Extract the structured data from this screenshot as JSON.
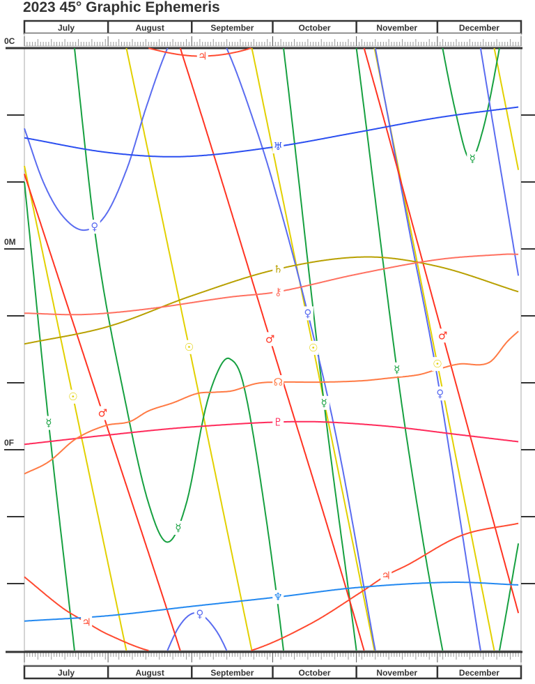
{
  "chart_data": {
    "type": "line",
    "title": "2023 45° Graphic Ephemeris",
    "x_tick_labels": [
      "July",
      "August",
      "September",
      "October",
      "November",
      "December"
    ],
    "x_range": [
      "07-01",
      "12-31"
    ],
    "y_tick_labels": [
      {
        "label": "0C",
        "deg": 0
      },
      {
        "label": "0M",
        "deg": 15
      },
      {
        "label": "0F",
        "deg": 30
      }
    ],
    "y_range_deg": [
      0,
      45
    ],
    "y_modulus": 45,
    "grid": false,
    "series": [
      {
        "icon": "sun",
        "glyph": "☉",
        "color": "#e2d000",
        "points": [
          [
            "07-01",
            98.8
          ],
          [
            "08-01",
            128.5
          ],
          [
            "09-01",
            158.3
          ],
          [
            "10-01",
            187.6
          ],
          [
            "11-01",
            218.3
          ],
          [
            "12-01",
            248.6
          ],
          [
            "12-31",
            279.1
          ]
        ],
        "labels": [
          "07-19",
          "08-31",
          "10-16",
          "12-01"
        ]
      },
      {
        "icon": "mercury",
        "glyph": "☿",
        "color": "#16a040",
        "points": [
          [
            "07-01",
            100
          ],
          [
            "07-10",
            118
          ],
          [
            "07-19",
            134
          ],
          [
            "07-28",
            150
          ],
          [
            "08-08",
            162
          ],
          [
            "08-16",
            169
          ],
          [
            "08-23",
            171.9
          ],
          [
            "08-30",
            169
          ],
          [
            "09-06",
            162
          ],
          [
            "09-11",
            159
          ],
          [
            "09-15",
            158.2
          ],
          [
            "09-20",
            160
          ],
          [
            "09-27",
            168
          ],
          [
            "10-05",
            180
          ],
          [
            "10-20",
            206.5
          ],
          [
            "11-01",
            225
          ],
          [
            "11-16",
            249
          ],
          [
            "11-25",
            261
          ],
          [
            "12-02",
            269
          ],
          [
            "12-08",
            275
          ],
          [
            "12-13",
            278.3
          ],
          [
            "12-18",
            276
          ],
          [
            "12-24",
            270
          ],
          [
            "12-31",
            262
          ]
        ],
        "labels": [
          "07-10",
          "08-27",
          "10-20",
          "11-16",
          "12-14"
        ]
      },
      {
        "icon": "venus",
        "glyph": "♀",
        "color": "#5a6cf0",
        "points": [
          [
            "07-01",
            141
          ],
          [
            "07-08",
            145
          ],
          [
            "07-15",
            147.5
          ],
          [
            "07-23",
            148.6
          ],
          [
            "07-31",
            147.5
          ],
          [
            "08-08",
            144
          ],
          [
            "08-15",
            139.5
          ],
          [
            "08-22",
            135.5
          ],
          [
            "08-28",
            133
          ],
          [
            "09-03",
            132.2
          ],
          [
            "09-10",
            133.5
          ],
          [
            "09-16",
            136
          ],
          [
            "09-24",
            140.5
          ],
          [
            "10-01",
            145
          ],
          [
            "10-13",
            154
          ],
          [
            "10-25",
            164.5
          ],
          [
            "11-08",
            180
          ],
          [
            "11-20",
            193
          ],
          [
            "12-01",
            204.6
          ],
          [
            "12-17",
            225
          ],
          [
            "12-31",
            242
          ]
        ],
        "labels": [
          "07-27",
          "09-04",
          "10-14",
          "12-02"
        ]
      },
      {
        "icon": "mars",
        "glyph": "♂",
        "color": "#ff3322",
        "points": [
          [
            "07-01",
            144.4
          ],
          [
            "08-01",
            163.5
          ],
          [
            "09-01",
            182.7
          ],
          [
            "10-01",
            202.4
          ],
          [
            "11-01",
            223.0
          ],
          [
            "12-01",
            245
          ],
          [
            "12-31",
            267.2
          ]
        ],
        "labels": [
          "07-30",
          "09-30",
          "12-03"
        ]
      },
      {
        "icon": "jupiter",
        "glyph": "♃",
        "color": "#ff4a30",
        "points": [
          [
            "07-01",
            39.5
          ],
          [
            "07-15",
            41.8
          ],
          [
            "07-24",
            42.9
          ],
          [
            "08-01",
            43.8
          ],
          [
            "08-16",
            45.0
          ],
          [
            "09-04",
            45.6
          ],
          [
            "09-23",
            45.0
          ],
          [
            "10-15",
            43.0
          ],
          [
            "11-03",
            40.6
          ],
          [
            "11-12",
            39.4
          ],
          [
            "11-20",
            38.6
          ],
          [
            "12-10",
            36.4
          ],
          [
            "12-31",
            35.5
          ]
        ],
        "labels": [
          "07-24",
          "09-05",
          "11-12"
        ]
      },
      {
        "icon": "saturn",
        "glyph": "♄",
        "color": "#b8a000",
        "points": [
          [
            "07-01",
            337.1
          ],
          [
            "08-01",
            335.8
          ],
          [
            "09-01",
            333.5
          ],
          [
            "10-03",
            331.5
          ],
          [
            "11-04",
            330.6
          ],
          [
            "12-01",
            331.3
          ],
          [
            "12-31",
            333.2
          ]
        ],
        "labels": [
          "10-03"
        ]
      },
      {
        "icon": "uranus",
        "glyph": "♅",
        "color": "#2a4ef0",
        "points": [
          [
            "07-01",
            51.7
          ],
          [
            "08-01",
            52.8
          ],
          [
            "08-29",
            53.1
          ],
          [
            "10-01",
            52.4
          ],
          [
            "11-01",
            51.3
          ],
          [
            "12-01",
            50.2
          ],
          [
            "12-31",
            49.4
          ]
        ],
        "labels": [
          "10-03"
        ]
      },
      {
        "icon": "neptune",
        "glyph": "♆",
        "color": "#2288f0",
        "points": [
          [
            "07-01",
            357.8
          ],
          [
            "08-01",
            357.4
          ],
          [
            "09-01",
            356.7
          ],
          [
            "10-03",
            356.0
          ],
          [
            "11-01",
            355.3
          ],
          [
            "12-06",
            354.9
          ],
          [
            "12-31",
            355.1
          ]
        ],
        "labels": [
          "10-03"
        ]
      },
      {
        "icon": "pluto",
        "glyph": "♇",
        "color": "#ff2a5a",
        "points": [
          [
            "07-01",
            299.6
          ],
          [
            "08-01",
            298.9
          ],
          [
            "09-01",
            298.3
          ],
          [
            "10-11",
            297.9
          ],
          [
            "11-10",
            298.2
          ],
          [
            "12-10",
            298.9
          ],
          [
            "12-31",
            299.4
          ]
        ],
        "labels": [
          "10-03"
        ]
      },
      {
        "icon": "chiron",
        "glyph": "⚷",
        "color": "#ff7060",
        "points": [
          [
            "07-01",
            19.8
          ],
          [
            "07-23",
            19.9
          ],
          [
            "08-15",
            19.5
          ],
          [
            "09-15",
            18.6
          ],
          [
            "10-03",
            18.2
          ],
          [
            "11-01",
            16.9
          ],
          [
            "12-01",
            15.8
          ],
          [
            "12-26",
            15.4
          ],
          [
            "12-31",
            15.4
          ]
        ],
        "labels": [
          "10-03"
        ]
      },
      {
        "icon": "north-node",
        "glyph": "☊",
        "color": "#ff7a44",
        "points": [
          [
            "07-01",
            31.8
          ],
          [
            "07-10",
            30.9
          ],
          [
            "07-20",
            29.2
          ],
          [
            "07-31",
            28.2
          ],
          [
            "08-09",
            27.9
          ],
          [
            "08-16",
            27.1
          ],
          [
            "08-25",
            26.5
          ],
          [
            "09-03",
            25.8
          ],
          [
            "09-10",
            25.7
          ],
          [
            "09-16",
            25.6
          ],
          [
            "09-25",
            25.05
          ],
          [
            "10-03",
            24.95
          ],
          [
            "10-19",
            24.95
          ],
          [
            "11-03",
            24.85
          ],
          [
            "11-13",
            24.65
          ],
          [
            "11-24",
            24.4
          ],
          [
            "12-01",
            24.0
          ],
          [
            "12-09",
            23.6
          ],
          [
            "12-20",
            23.5
          ],
          [
            "12-27",
            21.9
          ],
          [
            "12-31",
            21.15
          ]
        ],
        "labels": [
          "10-03"
        ]
      }
    ]
  }
}
